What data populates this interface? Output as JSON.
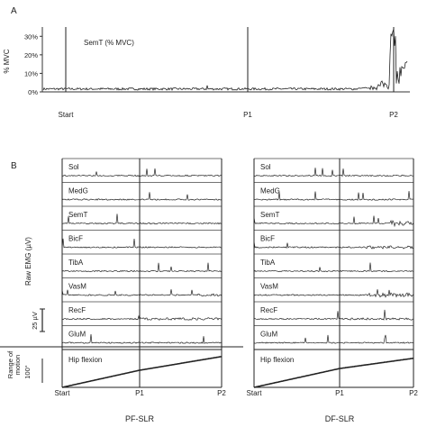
{
  "panel_a": {
    "letter": "A",
    "ylabel": "% MVC",
    "series_label": "SemT (% MVC)",
    "yticks": [
      "30%",
      "20%",
      "10%",
      "0%"
    ],
    "markers": [
      "Start",
      "P1",
      "P2"
    ]
  },
  "panel_b": {
    "letter": "B",
    "ylabel_emg": "Raw EMG (µV)",
    "scale_bar_label": "25 µV",
    "rom_label": "Range of motion",
    "rom_scale": "100°",
    "muscles": [
      "Sol",
      "MedG",
      "SemT",
      "BicF",
      "TibA",
      "VasM",
      "RecF",
      "GluM"
    ],
    "angle_label": "Hip flexion",
    "markers": [
      "Start",
      "P1",
      "P2"
    ],
    "left_title": "PF-SLR",
    "right_title": "DF-SLR"
  },
  "chart_data": [
    {
      "type": "line",
      "panel": "A",
      "series": [
        {
          "name": "SemT (% MVC)",
          "x": [
            "Start",
            "P1",
            "P2"
          ],
          "values": [
            1,
            1,
            33
          ]
        }
      ],
      "ylabel": "% MVC",
      "ylim": [
        0,
        35
      ],
      "yticks": [
        0,
        10,
        20,
        30
      ],
      "x_markers": [
        "Start",
        "P1",
        "P2"
      ]
    },
    {
      "type": "line",
      "panel": "B",
      "title": "PF-SLR",
      "series": [
        {
          "name": "Sol"
        },
        {
          "name": "MedG"
        },
        {
          "name": "SemT"
        },
        {
          "name": "BicF"
        },
        {
          "name": "TibA"
        },
        {
          "name": "VasM"
        },
        {
          "name": "RecF"
        },
        {
          "name": "GluM"
        },
        {
          "name": "Hip flexion",
          "x": [
            "Start",
            "P1",
            "P2"
          ],
          "values": [
            0,
            50,
            90
          ]
        }
      ],
      "x_markers": [
        "Start",
        "P1",
        "P2"
      ]
    },
    {
      "type": "line",
      "panel": "B",
      "title": "DF-SLR",
      "series": [
        {
          "name": "Sol"
        },
        {
          "name": "MedG"
        },
        {
          "name": "SemT"
        },
        {
          "name": "BicF"
        },
        {
          "name": "TibA"
        },
        {
          "name": "VasM"
        },
        {
          "name": "RecF"
        },
        {
          "name": "GluM"
        },
        {
          "name": "Hip flexion",
          "x": [
            "Start",
            "P1",
            "P2"
          ],
          "values": [
            0,
            55,
            85
          ]
        }
      ],
      "x_markers": [
        "Start",
        "P1",
        "P2"
      ]
    }
  ]
}
